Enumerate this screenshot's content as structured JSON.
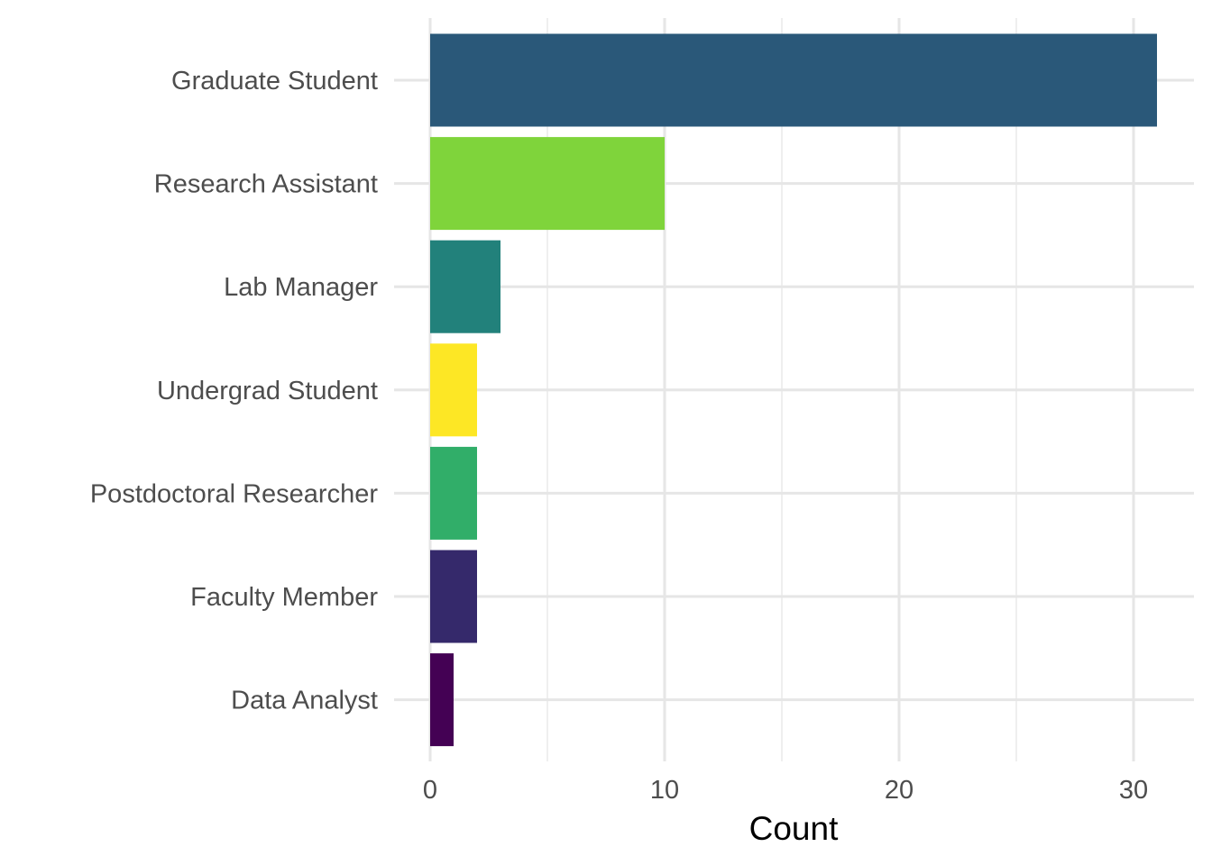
{
  "chart_data": {
    "type": "bar",
    "orientation": "horizontal",
    "categories": [
      "Graduate Student",
      "Research Assistant",
      "Lab Manager",
      "Undergrad Student",
      "Postdoctoral Researcher",
      "Faculty Member",
      "Data Analyst"
    ],
    "values": [
      31,
      10,
      3,
      2,
      2,
      2,
      1
    ],
    "colors": [
      "#2a5879",
      "#7fd43b",
      "#22817b",
      "#fde725",
      "#31ae69",
      "#35296b",
      "#440154"
    ],
    "xlabel": "Count",
    "ylabel": "",
    "xlim": [
      0,
      32
    ],
    "x_ticks": [
      0,
      10,
      20,
      30
    ],
    "x_tick_labels": [
      "0",
      "10",
      "20",
      "30"
    ],
    "grid": true,
    "legend": "none"
  }
}
